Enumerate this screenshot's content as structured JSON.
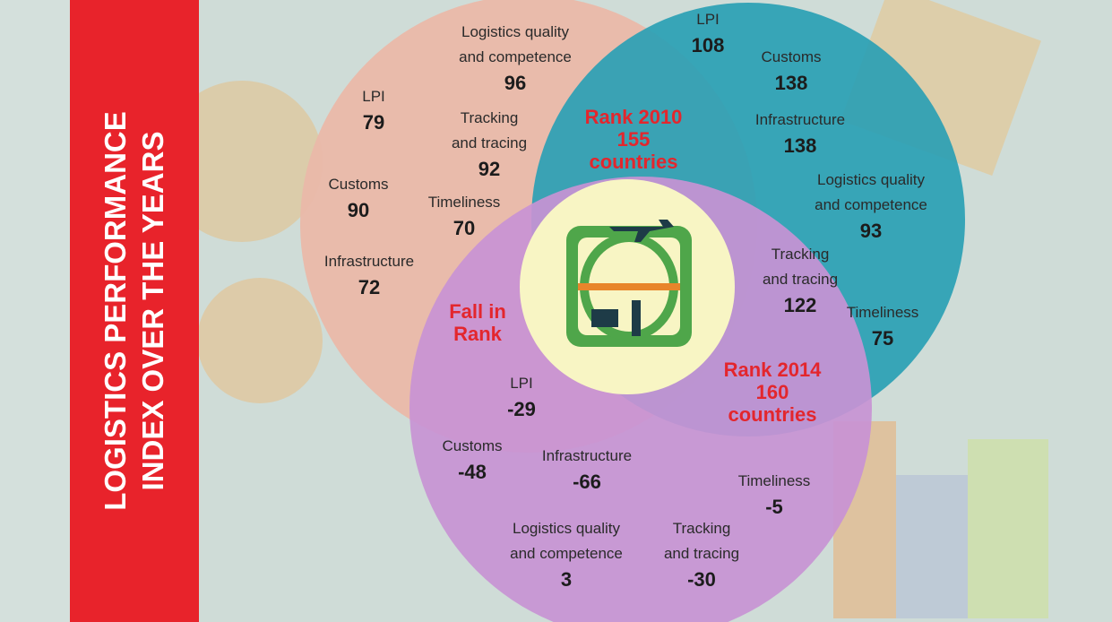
{
  "title": "LOGISTICS PERFORMANCE\nINDEX OVER THE YEARS",
  "groups": [
    {
      "label": "Rank 2010\n155\ncountries",
      "items": [
        {
          "label": "Logistics quality\nand competence",
          "value": 96
        },
        {
          "label": "LPI",
          "value": 79
        },
        {
          "label": "Tracking\nand tracing",
          "value": 92
        },
        {
          "label": "Customs",
          "value": 90
        },
        {
          "label": "Timeliness",
          "value": 70
        },
        {
          "label": "Infrastructure",
          "value": 72
        }
      ]
    },
    {
      "label": "Rank 2014\n160\ncountries",
      "items": [
        {
          "label": "LPI",
          "value": 108
        },
        {
          "label": "Customs",
          "value": 138
        },
        {
          "label": "Infrastructure",
          "value": 138
        },
        {
          "label": "Logistics quality\nand competence",
          "value": 93
        },
        {
          "label": "Tracking\nand tracing",
          "value": 122
        },
        {
          "label": "Timeliness",
          "value": 75
        }
      ]
    },
    {
      "label": "Fall in\nRank",
      "items": [
        {
          "label": "LPI",
          "value": -29
        },
        {
          "label": "Customs",
          "value": -48
        },
        {
          "label": "Infrastructure",
          "value": -66
        },
        {
          "label": "Timeliness",
          "value": -5
        },
        {
          "label": "Logistics quality\nand competence",
          "value": 3
        },
        {
          "label": "Tracking\nand tracing",
          "value": -30
        }
      ]
    }
  ]
}
